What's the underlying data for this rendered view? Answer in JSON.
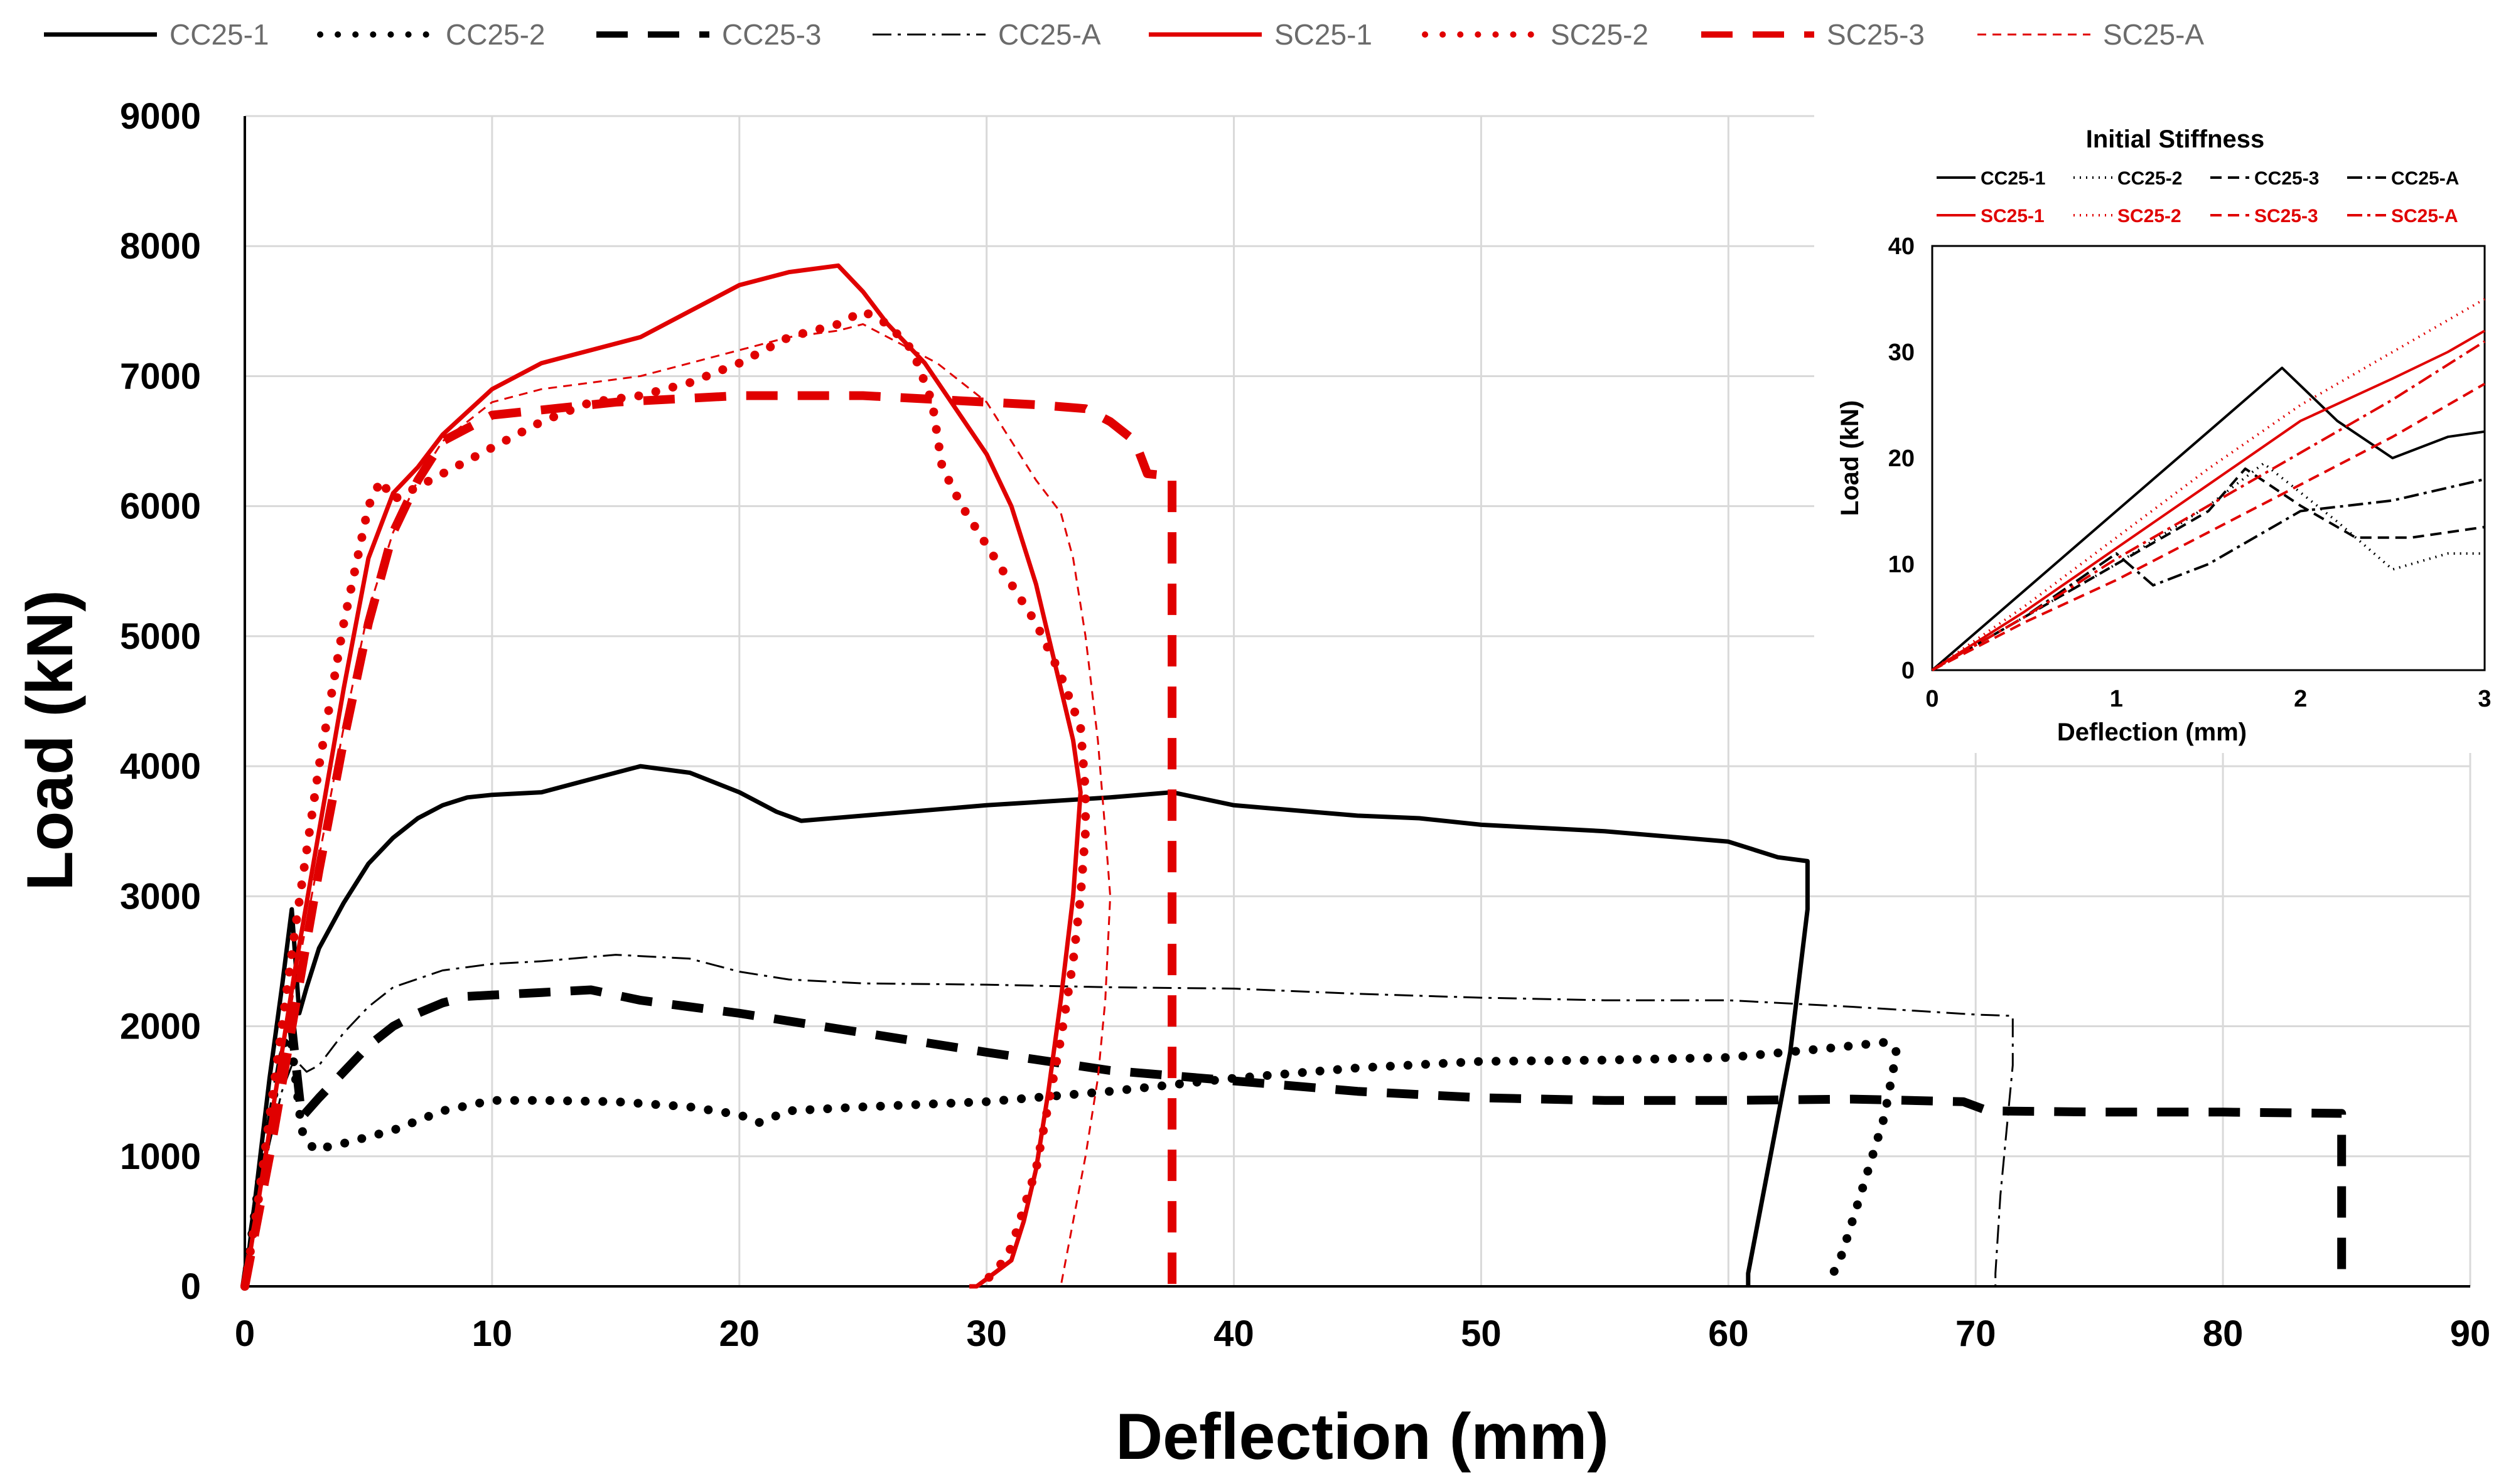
{
  "chart_data": [
    {
      "type": "line",
      "title": "",
      "xlabel": "Deflection (mm)",
      "ylabel": "Load (kN)",
      "xlim": [
        0,
        90
      ],
      "ylim": [
        0,
        9000
      ],
      "xticks": [
        0,
        10,
        20,
        30,
        40,
        50,
        60,
        70,
        80,
        90
      ],
      "yticks": [
        0,
        1000,
        2000,
        3000,
        4000,
        5000,
        6000,
        7000,
        8000,
        9000
      ],
      "grid": true,
      "legend": "top",
      "series": [
        {
          "name": "CC25-1",
          "color": "#000000",
          "style": "solid",
          "weight": "medium",
          "x": [
            0,
            0.5,
            1,
            1.5,
            1.9,
            2.2,
            2.5,
            3,
            4,
            5,
            6,
            7,
            8,
            9,
            10,
            12,
            14,
            16,
            18,
            20,
            21.5,
            22.5,
            25,
            30,
            35,
            37.5,
            40,
            45,
            47.5,
            50,
            55,
            60,
            62,
            63.2,
            63.2,
            62.5,
            61.5,
            60.8,
            60.8
          ],
          "y": [
            0,
            800,
            1600,
            2300,
            2900,
            2100,
            2300,
            2600,
            2950,
            3250,
            3450,
            3600,
            3700,
            3760,
            3780,
            3800,
            3900,
            4000,
            3950,
            3800,
            3650,
            3580,
            3620,
            3700,
            3760,
            3800,
            3700,
            3620,
            3600,
            3550,
            3500,
            3420,
            3300,
            3270,
            2900,
            1800,
            800,
            100,
            0
          ]
        },
        {
          "name": "CC25-2",
          "color": "#000000",
          "style": "dot",
          "weight": "heavy",
          "x": [
            0,
            0.5,
            1,
            1.5,
            1.8,
            2.3,
            2.8,
            4,
            6,
            8,
            10,
            12,
            15,
            18,
            20,
            20.8,
            22,
            25,
            30,
            35,
            40,
            45,
            50,
            55,
            60,
            64,
            66.5,
            66.8,
            66.3,
            65.5,
            64.6,
            64
          ],
          "y": [
            0,
            700,
            1300,
            1800,
            2000,
            1200,
            1050,
            1100,
            1200,
            1350,
            1430,
            1430,
            1420,
            1380,
            1320,
            1260,
            1350,
            1380,
            1420,
            1500,
            1600,
            1680,
            1730,
            1740,
            1760,
            1830,
            1880,
            1800,
            1300,
            800,
            250,
            0
          ]
        },
        {
          "name": "CC25-3",
          "color": "#000000",
          "style": "dash",
          "weight": "heavy",
          "x": [
            0,
            0.5,
            1,
            1.5,
            1.9,
            2.3,
            3,
            4,
            5,
            6,
            7,
            8,
            9,
            10,
            12,
            14,
            16,
            18,
            20,
            25,
            30,
            35,
            40,
            45,
            50,
            55,
            60,
            65,
            69.5,
            70.5,
            75,
            80,
            84.8,
            84.8,
            84.8
          ],
          "y": [
            0,
            650,
            1200,
            1750,
            2000,
            1300,
            1450,
            1650,
            1850,
            2000,
            2100,
            2180,
            2230,
            2240,
            2260,
            2280,
            2200,
            2150,
            2100,
            1950,
            1800,
            1660,
            1580,
            1500,
            1450,
            1430,
            1430,
            1440,
            1420,
            1350,
            1340,
            1340,
            1330,
            800,
            0
          ]
        },
        {
          "name": "CC25-A",
          "color": "#000000",
          "style": "dashdot",
          "weight": "light",
          "x": [
            0,
            0.5,
            1,
            1.5,
            2,
            2.5,
            3,
            4,
            5,
            6,
            8,
            10,
            12,
            15,
            18,
            20,
            22,
            25,
            30,
            35,
            40,
            45,
            50,
            55,
            60,
            65,
            70,
            71.5,
            71.5,
            71,
            70.8,
            70.8
          ],
          "y": [
            0,
            600,
            1100,
            1500,
            1750,
            1650,
            1700,
            1950,
            2150,
            2300,
            2430,
            2480,
            2500,
            2550,
            2520,
            2420,
            2360,
            2330,
            2320,
            2300,
            2290,
            2250,
            2220,
            2200,
            2200,
            2150,
            2090,
            2080,
            1700,
            700,
            100,
            0
          ]
        },
        {
          "name": "SC25-1",
          "color": "#e00000",
          "style": "solid",
          "weight": "medium",
          "x": [
            0,
            0.5,
            1,
            2,
            3,
            4,
            5,
            6,
            7,
            8,
            10,
            12,
            14,
            16,
            18,
            20,
            22,
            24,
            25,
            26,
            27.5,
            30,
            31,
            32,
            32.5,
            33,
            33.5,
            33.8,
            33.5,
            33,
            32.5,
            32,
            31.5,
            31,
            30.3,
            29.6,
            29.3
          ],
          "y": [
            0,
            600,
            1200,
            2400,
            3500,
            4600,
            5600,
            6100,
            6300,
            6550,
            6900,
            7100,
            7200,
            7300,
            7500,
            7700,
            7800,
            7850,
            7650,
            7400,
            7100,
            6400,
            6000,
            5400,
            5000,
            4600,
            4200,
            3800,
            3000,
            2200,
            1500,
            900,
            500,
            200,
            100,
            0,
            0
          ]
        },
        {
          "name": "SC25-2",
          "color": "#e00000",
          "style": "dot",
          "weight": "heavy",
          "x": [
            0,
            0.5,
            1,
            2,
            3,
            4,
            5,
            5.5,
            6,
            7,
            8,
            10,
            12,
            14,
            16,
            18,
            20,
            22,
            24,
            25,
            26,
            27,
            27.8,
            28.2,
            29,
            30,
            31,
            32,
            33,
            33.8,
            34,
            34,
            33.8,
            33.5,
            33,
            32.5,
            32,
            31.5,
            31,
            30.5,
            30,
            29.8
          ],
          "y": [
            0,
            600,
            1300,
            2700,
            4000,
            5100,
            6000,
            6200,
            6050,
            6150,
            6250,
            6450,
            6650,
            6800,
            6850,
            6950,
            7100,
            7300,
            7400,
            7500,
            7400,
            7200,
            6800,
            6300,
            6000,
            5700,
            5400,
            5100,
            4700,
            4300,
            3800,
            3500,
            3000,
            2500,
            1900,
            1400,
            900,
            600,
            300,
            150,
            50,
            0
          ]
        },
        {
          "name": "SC25-3",
          "color": "#e00000",
          "style": "dash",
          "weight": "heavy",
          "x": [
            0,
            0.5,
            1,
            2,
            3,
            4,
            5,
            6,
            7,
            8,
            10,
            15,
            20,
            25,
            30,
            32,
            34,
            35,
            36,
            36.5,
            37.5,
            37.5,
            37.5
          ],
          "y": [
            0,
            500,
            1000,
            2100,
            3200,
            4200,
            5100,
            5800,
            6200,
            6500,
            6700,
            6800,
            6850,
            6850,
            6800,
            6780,
            6750,
            6650,
            6500,
            6250,
            6230,
            3000,
            0
          ]
        },
        {
          "name": "SC25-A",
          "color": "#e00000",
          "style": "dash",
          "weight": "light",
          "x": [
            0,
            0.5,
            1,
            2,
            3,
            4,
            5,
            6,
            7,
            8,
            10,
            12,
            14,
            16,
            18,
            20,
            22,
            24,
            25,
            26,
            27,
            28,
            29,
            30,
            31,
            32,
            33,
            33.5,
            34,
            34.5,
            34.8,
            35,
            34.8,
            34.5,
            34,
            33.5,
            33
          ],
          "y": [
            0,
            600,
            1200,
            2300,
            3300,
            4300,
            5200,
            5800,
            6200,
            6500,
            6800,
            6900,
            6950,
            7000,
            7100,
            7200,
            7300,
            7350,
            7400,
            7300,
            7200,
            7100,
            6950,
            6800,
            6500,
            6200,
            5950,
            5600,
            5000,
            4200,
            3500,
            3000,
            2200,
            1600,
            1000,
            500,
            0
          ]
        }
      ]
    },
    {
      "type": "line",
      "title": "Initial Stiffness",
      "xlabel": "Deflection (mm)",
      "ylabel": "Load (kN)",
      "xlim": [
        0,
        3
      ],
      "ylim": [
        0,
        40
      ],
      "xticks": [
        0,
        1,
        2,
        3
      ],
      "yticks": [
        0,
        10,
        20,
        30,
        40
      ],
      "grid": false,
      "legend": "top",
      "series": [
        {
          "name": "CC25-1",
          "color": "#000000",
          "style": "solid",
          "x": [
            0,
            0.5,
            1,
            1.5,
            1.9,
            2.2,
            2.5,
            2.8,
            3
          ],
          "y": [
            0,
            7.5,
            15,
            22.5,
            28.5,
            23.5,
            20,
            22,
            22.5
          ]
        },
        {
          "name": "CC25-2",
          "color": "#000000",
          "style": "dot",
          "x": [
            0,
            0.5,
            1,
            1.5,
            1.8,
            2.2,
            2.5,
            2.8,
            3
          ],
          "y": [
            0,
            5,
            10,
            15.5,
            19.5,
            14,
            9.5,
            11,
            11
          ]
        },
        {
          "name": "CC25-3",
          "color": "#000000",
          "style": "dash",
          "x": [
            0,
            0.5,
            1,
            1.5,
            1.7,
            2,
            2.3,
            2.6,
            3
          ],
          "y": [
            0,
            5,
            10,
            15,
            19,
            15.5,
            12.5,
            12.5,
            13.5
          ]
        },
        {
          "name": "CC25-A",
          "color": "#000000",
          "style": "dashdot",
          "x": [
            0,
            0.5,
            1,
            1.2,
            1.5,
            2,
            2.5,
            3
          ],
          "y": [
            0,
            5,
            11,
            8,
            10,
            15,
            16,
            18
          ]
        },
        {
          "name": "SC25-1",
          "color": "#e00000",
          "style": "solid",
          "x": [
            0,
            0.5,
            1,
            1.5,
            2,
            2.5,
            2.8,
            3
          ],
          "y": [
            0,
            5.5,
            11.5,
            17.5,
            23.5,
            27.5,
            30,
            32
          ]
        },
        {
          "name": "SC25-2",
          "color": "#e00000",
          "style": "dot",
          "x": [
            0,
            0.5,
            1,
            1.5,
            2,
            2.5,
            3
          ],
          "y": [
            0,
            6,
            12.5,
            19,
            25,
            30,
            35
          ]
        },
        {
          "name": "SC25-3",
          "color": "#e00000",
          "style": "dash",
          "x": [
            0,
            0.5,
            1,
            1.5,
            2,
            2.5,
            3
          ],
          "y": [
            0,
            4.5,
            8.5,
            13,
            17.5,
            22,
            27
          ]
        },
        {
          "name": "SC25-A",
          "color": "#e00000",
          "style": "dashdot",
          "x": [
            0,
            0.5,
            1,
            1.5,
            2,
            2.5,
            3
          ],
          "y": [
            0,
            5,
            10.5,
            15.5,
            20.5,
            25.5,
            31
          ]
        }
      ]
    }
  ]
}
